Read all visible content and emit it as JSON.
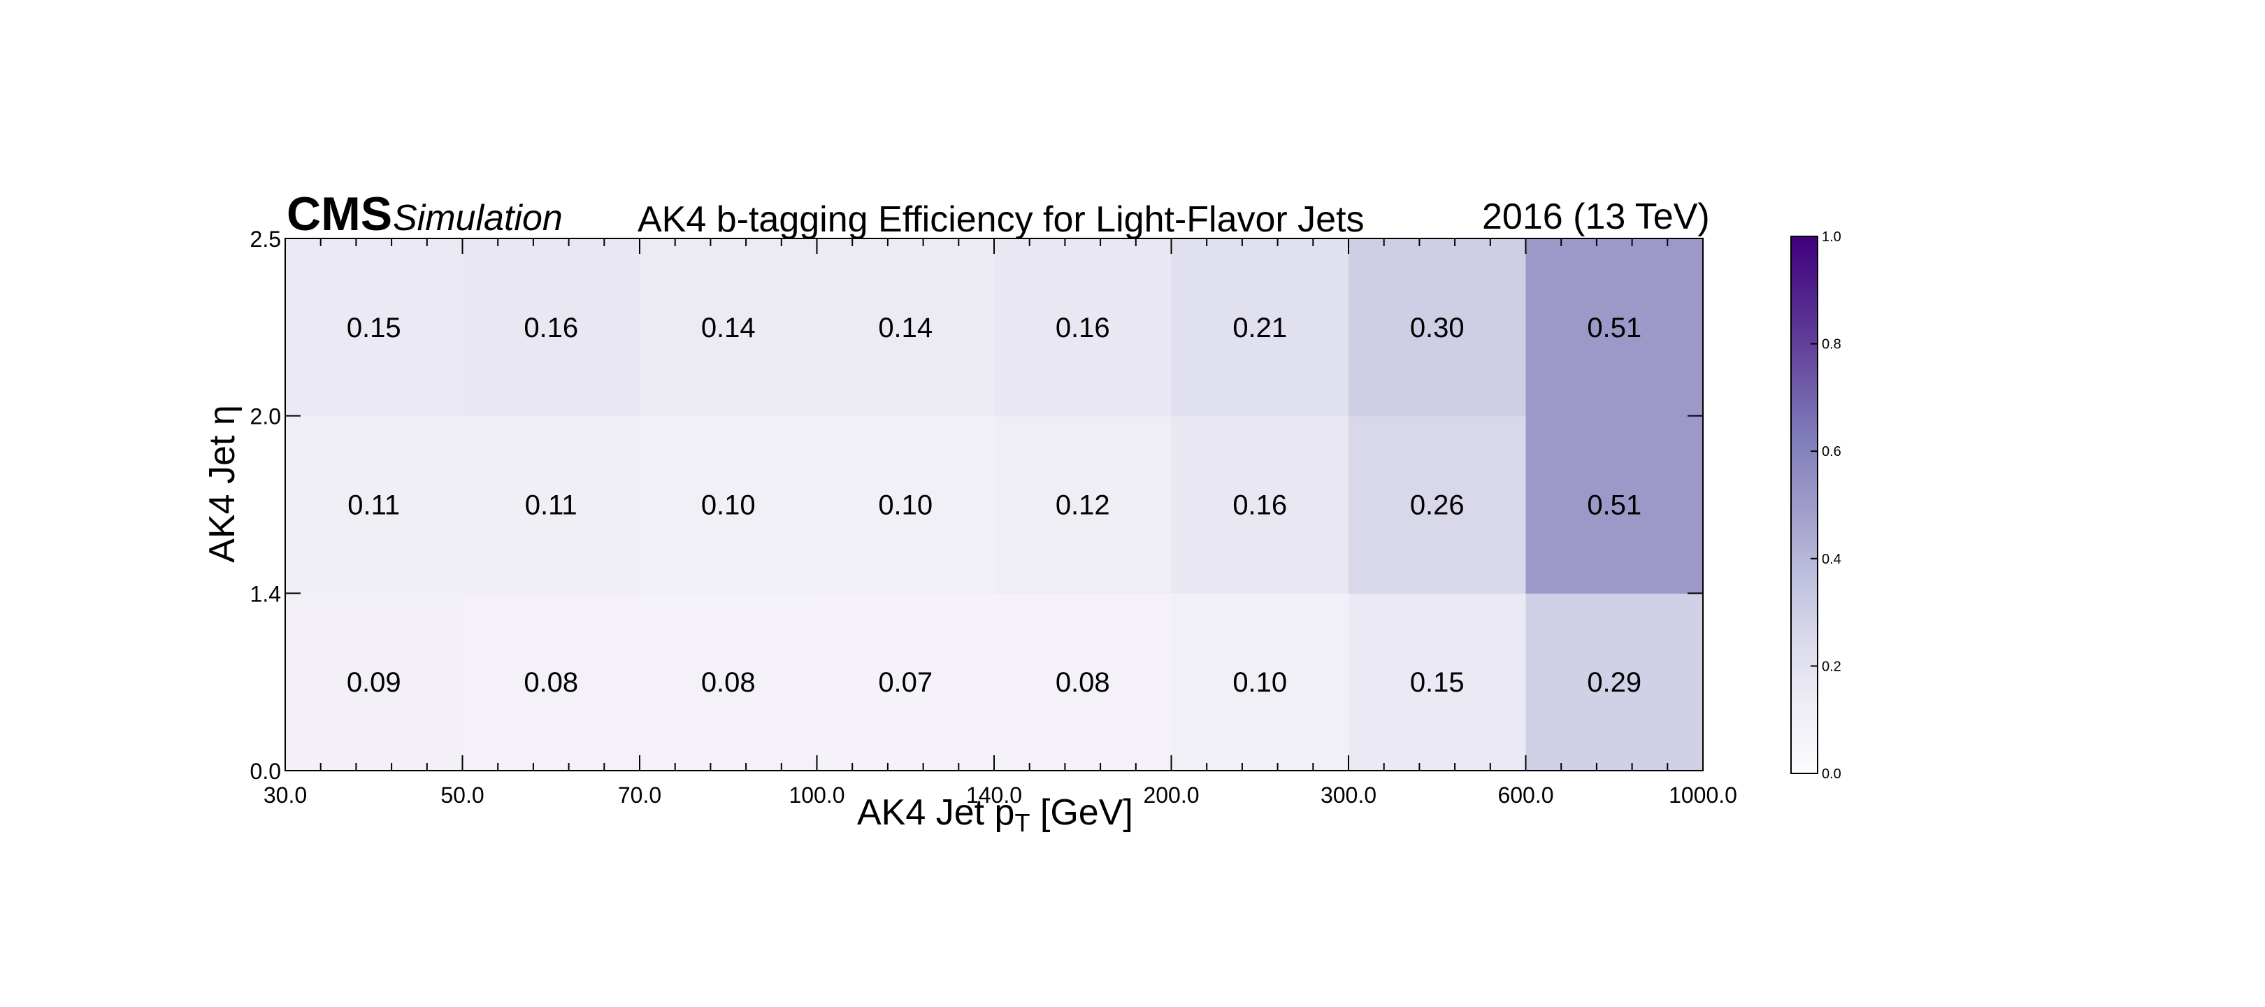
{
  "header": {
    "experiment": "CMS",
    "subtitle": "Simulation",
    "title": "AK4 b-tagging Efficiency for Light-Flavor Jets",
    "energy": "2016 (13 TeV)"
  },
  "axes": {
    "x_title_main": "AK4 Jet p",
    "x_title_sub": "T",
    "x_title_unit": " [GeV]",
    "y_title": "AK4 Jet η"
  },
  "chart_data": {
    "type": "heatmap",
    "x_bin_edges": [
      "30.0",
      "50.0",
      "70.0",
      "100.0",
      "140.0",
      "200.0",
      "300.0",
      "600.0",
      "1000.0"
    ],
    "y_bin_edges": [
      "0.0",
      "1.4",
      "2.0",
      "2.5"
    ],
    "values": [
      [
        0.09,
        0.08,
        0.08,
        0.07,
        0.08,
        0.1,
        0.15,
        0.29
      ],
      [
        0.11,
        0.11,
        0.1,
        0.1,
        0.12,
        0.16,
        0.26,
        0.51
      ],
      [
        0.15,
        0.16,
        0.14,
        0.14,
        0.16,
        0.21,
        0.3,
        0.51
      ]
    ],
    "value_labels": [
      [
        "0.09",
        "0.08",
        "0.08",
        "0.07",
        "0.08",
        "0.10",
        "0.15",
        "0.29"
      ],
      [
        "0.11",
        "0.11",
        "0.10",
        "0.10",
        "0.12",
        "0.16",
        "0.26",
        "0.51"
      ],
      [
        "0.15",
        "0.16",
        "0.14",
        "0.14",
        "0.16",
        "0.21",
        "0.30",
        "0.51"
      ]
    ],
    "colorbar": {
      "range": [
        0.0,
        1.0
      ],
      "ticks": [
        "0.0",
        "0.2",
        "0.4",
        "0.6",
        "0.8",
        "1.0"
      ],
      "colormap": "Purples",
      "color_low": "#fcfbfd",
      "color_high": "#3f007d"
    }
  }
}
